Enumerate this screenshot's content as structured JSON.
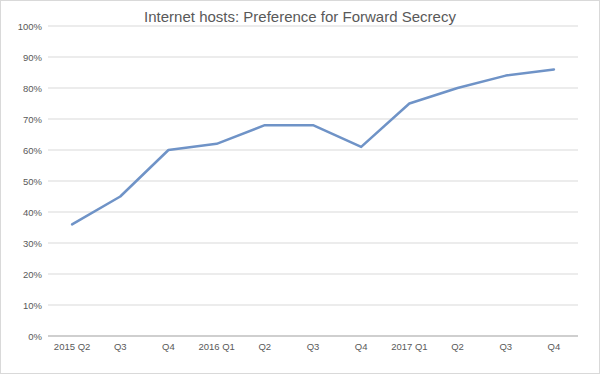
{
  "chart_data": {
    "type": "line",
    "title": "Internet hosts: Preference for Forward Secrecy",
    "categories": [
      "2015 Q2",
      "Q3",
      "Q4",
      "2016 Q1",
      "Q2",
      "Q3",
      "Q4",
      "2017 Q1",
      "Q2",
      "Q3",
      "Q4"
    ],
    "values": [
      36,
      45,
      60,
      62,
      68,
      68,
      61,
      75,
      80,
      84,
      86
    ],
    "color": "#6f93c7",
    "ylim": [
      0,
      100
    ],
    "yticks": [
      {
        "value": 0,
        "label": "0%"
      },
      {
        "value": 10,
        "label": "10%"
      },
      {
        "value": 20,
        "label": "20%"
      },
      {
        "value": 30,
        "label": "30%"
      },
      {
        "value": 40,
        "label": "40%"
      },
      {
        "value": 50,
        "label": "50%"
      },
      {
        "value": 60,
        "label": "60%"
      },
      {
        "value": 70,
        "label": "70%"
      },
      {
        "value": 80,
        "label": "80%"
      },
      {
        "value": 90,
        "label": "90%"
      },
      {
        "value": 100,
        "label": "100%"
      }
    ],
    "grid": true
  }
}
